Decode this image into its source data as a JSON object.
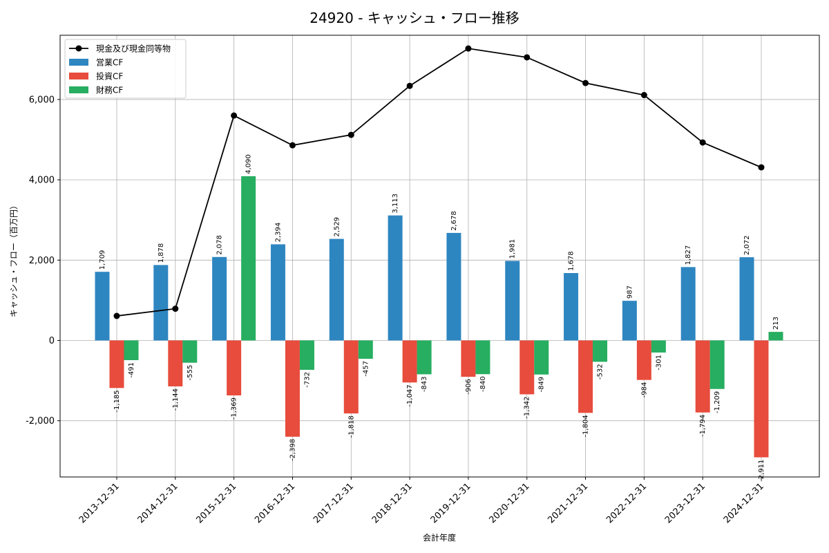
{
  "chart_data": {
    "type": "bar",
    "title": "24920 - キャッシュ・フロー推移",
    "xlabel": "会計年度",
    "ylabel": "キャッシュ・フロー（百万円）",
    "ylim": [
      -3400,
      7600
    ],
    "yticks": [
      -2000,
      0,
      2000,
      4000,
      6000
    ],
    "ytick_labels": [
      "-2,000",
      "0",
      "2,000",
      "4,000",
      "6,000"
    ],
    "grid": true,
    "legend_position": "top-left",
    "categories": [
      "2013-12-31",
      "2014-12-31",
      "2015-12-31",
      "2016-12-31",
      "2017-12-31",
      "2018-12-31",
      "2019-12-31",
      "2020-12-31",
      "2021-12-31",
      "2022-12-31",
      "2023-12-31",
      "2024-12-31"
    ],
    "series": [
      {
        "name": "営業CF",
        "type": "bar",
        "color": "#2e86c1",
        "values": [
          1709,
          1878,
          2078,
          2394,
          2529,
          3113,
          2678,
          1981,
          1678,
          987,
          1827,
          2072
        ],
        "labels": [
          "1,709",
          "1,878",
          "2,078",
          "2,394",
          "2,529",
          "3,113",
          "2,678",
          "1,981",
          "1,678",
          "987",
          "1,827",
          "2,072"
        ]
      },
      {
        "name": "投資CF",
        "type": "bar",
        "color": "#e74c3c",
        "values": [
          -1185,
          -1144,
          -1369,
          -2398,
          -1818,
          -1047,
          -906,
          -1342,
          -1804,
          -984,
          -1794,
          -2911
        ],
        "labels": [
          "-1,185",
          "-1,144",
          "-1,369",
          "-2,398",
          "-1,818",
          "-1,047",
          "-906",
          "-1,342",
          "-1,804",
          "-984",
          "-1,794",
          "-2,911"
        ]
      },
      {
        "name": "財務CF",
        "type": "bar",
        "color": "#27ae60",
        "values": [
          -491,
          -555,
          4090,
          -732,
          -457,
          -843,
          -840,
          -849,
          -532,
          -301,
          -1209,
          213
        ],
        "labels": [
          "-491",
          "-555",
          "4,090",
          "-732",
          "-457",
          "-843",
          "-840",
          "-849",
          "-532",
          "-301",
          "-1,209",
          "213"
        ]
      },
      {
        "name": "現金及び現金同等物",
        "type": "line",
        "color": "#000000",
        "values": [
          610,
          790,
          5600,
          4860,
          5120,
          6340,
          7270,
          7050,
          6410,
          6110,
          4930,
          4310
        ]
      }
    ]
  }
}
